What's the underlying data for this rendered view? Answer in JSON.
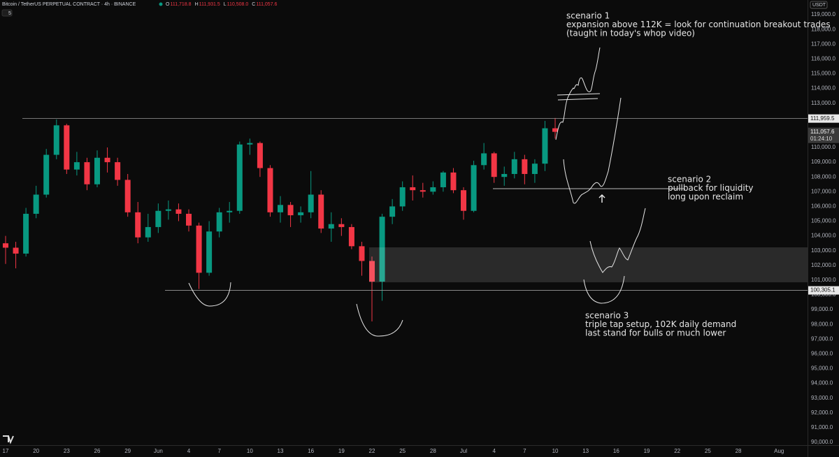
{
  "header": {
    "symbol": "Bitcoin / TetherUS PERPETUAL CONTRACT · 4h · BINANCE",
    "ohlc": [
      {
        "key": "O",
        "value": "111,718.8"
      },
      {
        "key": "H",
        "value": "111,931.5"
      },
      {
        "key": "L",
        "value": "110,508.0"
      },
      {
        "key": "C",
        "value": "111,057.6"
      }
    ],
    "interval_button": "5",
    "currency": "USDT"
  },
  "chart_data": {
    "type": "candlestick",
    "up_color": "#089981",
    "down_color": "#f23645",
    "grid": false,
    "x": [
      0,
      1,
      2,
      3,
      4,
      5,
      6,
      7,
      8,
      9,
      10,
      11,
      12,
      13,
      14,
      15,
      16,
      17,
      18,
      19,
      20,
      21,
      22,
      23,
      24,
      25,
      26,
      27,
      28,
      29,
      30,
      31,
      32,
      33,
      34,
      35,
      36,
      37,
      38,
      39,
      40,
      41,
      42,
      43,
      44,
      45,
      46,
      47,
      48,
      49,
      50,
      51,
      52,
      53,
      54
    ],
    "open": [
      103500,
      103200,
      102800,
      105500,
      106800,
      109500,
      111500,
      108500,
      109000,
      107500,
      109300,
      109000,
      107800,
      105600,
      103900,
      104600,
      105700,
      105800,
      105500,
      104700,
      101500,
      104300,
      105600,
      105700,
      110200,
      110300,
      108600,
      105600,
      106100,
      105400,
      105600,
      106800,
      104500,
      104800,
      104600,
      103300,
      102300,
      100900,
      105300,
      106000,
      107300,
      107100,
      107000,
      107300,
      108300,
      107100,
      105700,
      108800,
      109600,
      108000,
      108200,
      109200,
      108200,
      108900,
      111300
    ],
    "high": [
      104000,
      103600,
      105900,
      107400,
      109900,
      111900,
      111600,
      109700,
      109300,
      109800,
      110000,
      109300,
      108200,
      106300,
      105500,
      106200,
      106400,
      106200,
      105800,
      104900,
      105000,
      105900,
      106300,
      110400,
      110600,
      110400,
      108800,
      106700,
      106300,
      106000,
      108400,
      107100,
      105600,
      105200,
      104800,
      103600,
      102600,
      105500,
      106500,
      107700,
      108100,
      107600,
      107700,
      108400,
      108600,
      107300,
      109100,
      110300,
      109700,
      108700,
      109700,
      109500,
      109200,
      111800,
      112000
    ],
    "low": [
      102100,
      101800,
      102600,
      105200,
      106600,
      109200,
      108200,
      108100,
      107100,
      107300,
      108300,
      107400,
      105300,
      103500,
      103600,
      104200,
      105100,
      105000,
      104300,
      100400,
      101300,
      103900,
      104900,
      105500,
      109500,
      108000,
      105300,
      104900,
      104600,
      104900,
      105200,
      104200,
      103600,
      104000,
      103100,
      101300,
      98200,
      99600,
      104800,
      105700,
      106400,
      106600,
      106800,
      107000,
      106900,
      105100,
      105600,
      108500,
      107600,
      107400,
      107900,
      107500,
      107600,
      108400,
      110600
    ],
    "close": [
      103200,
      102800,
      105500,
      106800,
      109500,
      111500,
      108500,
      109000,
      107500,
      109300,
      109000,
      107800,
      105600,
      103900,
      104600,
      105700,
      105800,
      105500,
      104700,
      101500,
      104300,
      105600,
      105700,
      110200,
      110300,
      108600,
      105600,
      106100,
      105400,
      105600,
      106800,
      104500,
      104800,
      104600,
      103300,
      102300,
      100900,
      105300,
      106000,
      107300,
      107100,
      107000,
      107300,
      108300,
      107100,
      105700,
      108800,
      109600,
      108000,
      108200,
      109200,
      108200,
      108900,
      111300,
      111057.6
    ],
    "xlim": [
      -0.55,
      78.8
    ],
    "xticks": [
      {
        "value": 0,
        "label": "17"
      },
      {
        "value": 3,
        "label": "20"
      },
      {
        "value": 6,
        "label": "23"
      },
      {
        "value": 9,
        "label": "26"
      },
      {
        "value": 12,
        "label": "29"
      },
      {
        "value": 15,
        "label": "Jun"
      },
      {
        "value": 18,
        "label": "4"
      },
      {
        "value": 21,
        "label": "7"
      },
      {
        "value": 24,
        "label": "10"
      },
      {
        "value": 27,
        "label": "13"
      },
      {
        "value": 30,
        "label": "16"
      },
      {
        "value": 33,
        "label": "19"
      },
      {
        "value": 36,
        "label": "22"
      },
      {
        "value": 39,
        "label": "25"
      },
      {
        "value": 42,
        "label": "28"
      },
      {
        "value": 45,
        "label": "Jul"
      },
      {
        "value": 48,
        "label": "4"
      },
      {
        "value": 51,
        "label": "7"
      },
      {
        "value": 54,
        "label": "10"
      },
      {
        "value": 57,
        "label": "13"
      },
      {
        "value": 60,
        "label": "16"
      },
      {
        "value": 63,
        "label": "19"
      },
      {
        "value": 66,
        "label": "22"
      },
      {
        "value": 69,
        "label": "25"
      },
      {
        "value": 72,
        "label": "28"
      },
      {
        "value": 76,
        "label": "Aug"
      }
    ],
    "ylim": [
      89810,
      120000
    ],
    "yticks": [
      {
        "value": 90000,
        "label": "90,000.0"
      },
      {
        "value": 91000,
        "label": "91,000.0"
      },
      {
        "value": 92000,
        "label": "92,000.0"
      },
      {
        "value": 93000,
        "label": "93,000.0"
      },
      {
        "value": 94000,
        "label": "94,000.0"
      },
      {
        "value": 95000,
        "label": "95,000.0"
      },
      {
        "value": 96000,
        "label": "96,000.0"
      },
      {
        "value": 97000,
        "label": "97,000.0"
      },
      {
        "value": 98000,
        "label": "98,000.0"
      },
      {
        "value": 99000,
        "label": "99,000.0"
      },
      {
        "value": 100000,
        "label": "100,000.0"
      },
      {
        "value": 101000,
        "label": "101,000.0"
      },
      {
        "value": 102000,
        "label": "102,000.0"
      },
      {
        "value": 103000,
        "label": "103,000.0"
      },
      {
        "value": 104000,
        "label": "104,000.0"
      },
      {
        "value": 105000,
        "label": "105,000.0"
      },
      {
        "value": 106000,
        "label": "106,000.0"
      },
      {
        "value": 107000,
        "label": "107,000.0"
      },
      {
        "value": 108000,
        "label": "108,000.0"
      },
      {
        "value": 109000,
        "label": "109,000.0"
      },
      {
        "value": 110000,
        "label": "110,000.0"
      },
      {
        "value": 111000,
        "label": "111,000.0"
      },
      {
        "value": 112000,
        "label": "112,000.0"
      },
      {
        "value": 113000,
        "label": "113,000.0"
      },
      {
        "value": 114000,
        "label": "114,000.0"
      },
      {
        "value": 115000,
        "label": "115,000.0"
      },
      {
        "value": 116000,
        "label": "116,000.0"
      },
      {
        "value": 117000,
        "label": "117,000.0"
      },
      {
        "value": 118000,
        "label": "118,000.0"
      },
      {
        "value": 119000,
        "label": "119,000.0"
      }
    ],
    "price_lines": [
      {
        "value": 111959.5,
        "label": "111,959.5"
      },
      {
        "value": 100305.1,
        "label": "100,305.1"
      }
    ],
    "last_price": {
      "value": 111057.6,
      "label": "111,057.6",
      "countdown": "01:24:10"
    },
    "annotations": [
      {
        "lines": [
          "scenario 1",
          "expansion above 112K = look for continuation breakout trades",
          "(taught in today's whop video)"
        ]
      },
      {
        "lines": [
          "scenario 2",
          "pullback for liquidity",
          "long upon reclaim"
        ]
      },
      {
        "lines": [
          "scenario 3",
          "triple tap setup, 102K daily demand",
          "last stand for bulls or much lower"
        ]
      }
    ]
  }
}
